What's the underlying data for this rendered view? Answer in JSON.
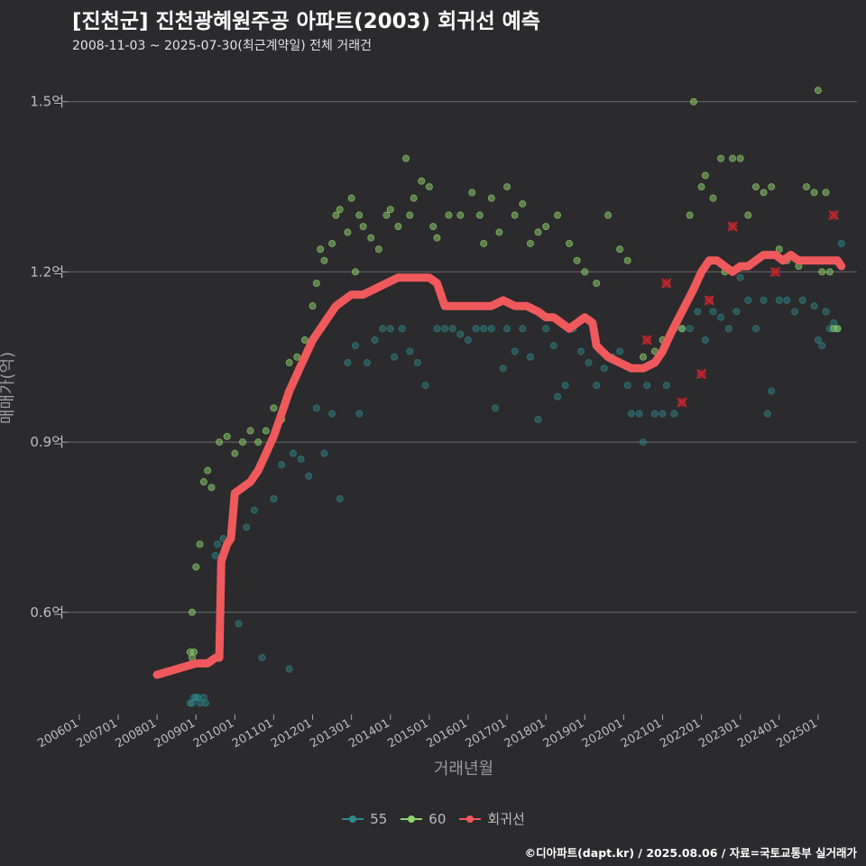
{
  "header": {
    "title": "[진천군] 진천광혜원주공 아파트(2003) 회귀선 예측",
    "subtitle": "2008-11-03 ~ 2025-07-30(최근계약일) 전체 거래건"
  },
  "footer": {
    "credit": "©디아파트(dapt.kr) / 2025.08.06 / 자료=국토교통부 실거래가"
  },
  "colors": {
    "background": "#2b2a2c",
    "s55": "#2e8b8f",
    "s60": "#8ed36b",
    "regression": "#f0595c",
    "grid": "#6a6a6a",
    "outlier": "#c0272d"
  },
  "chart_data": {
    "type": "scatter",
    "title": "[진천군] 진천광혜원주공 아파트(2003) 회귀선 예측",
    "xlabel": "거래년월",
    "ylabel": "매매가(억)",
    "x_range": [
      2005.7,
      2026.0
    ],
    "ylim": [
      0.42,
      1.56
    ],
    "y_ticks": [
      0.6,
      0.9,
      1.2,
      1.5
    ],
    "y_tick_labels": [
      "0.6억",
      "0.9억",
      "1.2억",
      "1.5억"
    ],
    "x_ticks": [
      2006,
      2007,
      2008,
      2009,
      2010,
      2011,
      2012,
      2013,
      2014,
      2015,
      2016,
      2017,
      2018,
      2019,
      2020,
      2021,
      2022,
      2023,
      2024,
      2025
    ],
    "x_tick_labels": [
      "200601",
      "200701",
      "200801",
      "200901",
      "201001",
      "201101",
      "201201",
      "201301",
      "201401",
      "201501",
      "201601",
      "201701",
      "201801",
      "201901",
      "202001",
      "202101",
      "202201",
      "202301",
      "202401",
      "202501"
    ],
    "legend": {
      "placement": "bottom",
      "items": [
        {
          "key": "55",
          "label": "55"
        },
        {
          "key": "60",
          "label": "60"
        },
        {
          "key": "regression",
          "label": "회귀선"
        }
      ]
    },
    "series": [
      {
        "name": "55",
        "points": [
          [
            2008.85,
            0.44
          ],
          [
            2008.9,
            0.44
          ],
          [
            2008.95,
            0.45
          ],
          [
            2009.0,
            0.45
          ],
          [
            2009.05,
            0.45
          ],
          [
            2009.1,
            0.44
          ],
          [
            2009.2,
            0.45
          ],
          [
            2009.25,
            0.44
          ],
          [
            2009.5,
            0.7
          ],
          [
            2009.55,
            0.72
          ],
          [
            2009.7,
            0.73
          ],
          [
            2010.0,
            0.8
          ],
          [
            2010.1,
            0.58
          ],
          [
            2010.3,
            0.75
          ],
          [
            2010.5,
            0.78
          ],
          [
            2010.7,
            0.52
          ],
          [
            2011.0,
            0.8
          ],
          [
            2011.2,
            0.86
          ],
          [
            2011.4,
            0.5
          ],
          [
            2011.5,
            0.88
          ],
          [
            2011.7,
            0.87
          ],
          [
            2011.9,
            0.84
          ],
          [
            2012.1,
            0.96
          ],
          [
            2012.3,
            0.88
          ],
          [
            2012.5,
            0.95
          ],
          [
            2012.7,
            0.8
          ],
          [
            2012.9,
            1.04
          ],
          [
            2013.1,
            1.07
          ],
          [
            2013.2,
            0.95
          ],
          [
            2013.4,
            1.04
          ],
          [
            2013.6,
            1.08
          ],
          [
            2013.8,
            1.1
          ],
          [
            2014.0,
            1.1
          ],
          [
            2014.1,
            1.05
          ],
          [
            2014.3,
            1.1
          ],
          [
            2014.5,
            1.06
          ],
          [
            2014.7,
            1.04
          ],
          [
            2014.9,
            1.0
          ],
          [
            2015.2,
            1.1
          ],
          [
            2015.4,
            1.1
          ],
          [
            2015.6,
            1.1
          ],
          [
            2015.8,
            1.09
          ],
          [
            2016.0,
            1.08
          ],
          [
            2016.2,
            1.1
          ],
          [
            2016.4,
            1.1
          ],
          [
            2016.6,
            1.1
          ],
          [
            2016.7,
            0.96
          ],
          [
            2016.9,
            1.03
          ],
          [
            2017.0,
            1.1
          ],
          [
            2017.2,
            1.06
          ],
          [
            2017.4,
            1.1
          ],
          [
            2017.6,
            1.05
          ],
          [
            2017.8,
            0.94
          ],
          [
            2018.0,
            1.1
          ],
          [
            2018.2,
            1.07
          ],
          [
            2018.3,
            0.98
          ],
          [
            2018.5,
            1.0
          ],
          [
            2018.7,
            1.1
          ],
          [
            2018.9,
            1.06
          ],
          [
            2019.1,
            1.04
          ],
          [
            2019.3,
            1.0
          ],
          [
            2019.5,
            1.03
          ],
          [
            2019.7,
            1.05
          ],
          [
            2019.9,
            1.06
          ],
          [
            2020.1,
            1.0
          ],
          [
            2020.2,
            0.95
          ],
          [
            2020.4,
            0.95
          ],
          [
            2020.5,
            0.9
          ],
          [
            2020.6,
            1.0
          ],
          [
            2020.8,
            0.95
          ],
          [
            2021.0,
            0.95
          ],
          [
            2021.1,
            1.0
          ],
          [
            2021.3,
            0.95
          ],
          [
            2021.5,
            1.1
          ],
          [
            2021.7,
            1.1
          ],
          [
            2021.9,
            1.13
          ],
          [
            2022.1,
            1.08
          ],
          [
            2022.3,
            1.13
          ],
          [
            2022.5,
            1.12
          ],
          [
            2022.7,
            1.1
          ],
          [
            2022.9,
            1.13
          ],
          [
            2023.0,
            1.19
          ],
          [
            2023.2,
            1.15
          ],
          [
            2023.4,
            1.1
          ],
          [
            2023.6,
            1.15
          ],
          [
            2023.7,
            0.95
          ],
          [
            2023.8,
            0.99
          ],
          [
            2024.0,
            1.15
          ],
          [
            2024.2,
            1.15
          ],
          [
            2024.4,
            1.13
          ],
          [
            2024.6,
            1.15
          ],
          [
            2024.9,
            1.14
          ],
          [
            2025.0,
            1.08
          ],
          [
            2025.1,
            1.07
          ],
          [
            2025.2,
            1.13
          ],
          [
            2025.3,
            1.1
          ],
          [
            2025.4,
            1.11
          ],
          [
            2025.5,
            1.1
          ],
          [
            2025.6,
            1.25
          ]
        ]
      },
      {
        "name": "60",
        "points": [
          [
            2008.85,
            0.53
          ],
          [
            2008.9,
            0.52
          ],
          [
            2008.95,
            0.53
          ],
          [
            2008.9,
            0.6
          ],
          [
            2009.0,
            0.68
          ],
          [
            2009.1,
            0.72
          ],
          [
            2009.2,
            0.83
          ],
          [
            2009.3,
            0.85
          ],
          [
            2009.4,
            0.82
          ],
          [
            2009.6,
            0.9
          ],
          [
            2009.8,
            0.91
          ],
          [
            2010.0,
            0.88
          ],
          [
            2010.2,
            0.9
          ],
          [
            2010.4,
            0.92
          ],
          [
            2010.6,
            0.9
          ],
          [
            2010.8,
            0.92
          ],
          [
            2011.0,
            0.96
          ],
          [
            2011.2,
            0.94
          ],
          [
            2011.4,
            1.04
          ],
          [
            2011.6,
            1.05
          ],
          [
            2011.8,
            1.08
          ],
          [
            2012.0,
            1.14
          ],
          [
            2012.1,
            1.18
          ],
          [
            2012.2,
            1.24
          ],
          [
            2012.3,
            1.22
          ],
          [
            2012.5,
            1.25
          ],
          [
            2012.6,
            1.3
          ],
          [
            2012.7,
            1.31
          ],
          [
            2012.9,
            1.27
          ],
          [
            2013.0,
            1.33
          ],
          [
            2013.1,
            1.2
          ],
          [
            2013.2,
            1.3
          ],
          [
            2013.3,
            1.28
          ],
          [
            2013.5,
            1.26
          ],
          [
            2013.7,
            1.24
          ],
          [
            2013.9,
            1.3
          ],
          [
            2014.0,
            1.31
          ],
          [
            2014.2,
            1.28
          ],
          [
            2014.4,
            1.4
          ],
          [
            2014.5,
            1.3
          ],
          [
            2014.6,
            1.33
          ],
          [
            2014.8,
            1.36
          ],
          [
            2015.0,
            1.35
          ],
          [
            2015.1,
            1.28
          ],
          [
            2015.2,
            1.26
          ],
          [
            2015.5,
            1.3
          ],
          [
            2015.8,
            1.3
          ],
          [
            2016.1,
            1.34
          ],
          [
            2016.3,
            1.3
          ],
          [
            2016.4,
            1.25
          ],
          [
            2016.6,
            1.33
          ],
          [
            2016.8,
            1.27
          ],
          [
            2017.0,
            1.35
          ],
          [
            2017.2,
            1.3
          ],
          [
            2017.4,
            1.32
          ],
          [
            2017.6,
            1.25
          ],
          [
            2017.8,
            1.27
          ],
          [
            2018.0,
            1.28
          ],
          [
            2018.3,
            1.3
          ],
          [
            2018.6,
            1.25
          ],
          [
            2018.8,
            1.22
          ],
          [
            2019.0,
            1.2
          ],
          [
            2019.3,
            1.18
          ],
          [
            2019.6,
            1.3
          ],
          [
            2019.9,
            1.24
          ],
          [
            2020.1,
            1.22
          ],
          [
            2020.5,
            1.05
          ],
          [
            2020.8,
            1.06
          ],
          [
            2021.0,
            1.08
          ],
          [
            2021.3,
            1.1
          ],
          [
            2021.5,
            1.1
          ],
          [
            2021.7,
            1.3
          ],
          [
            2021.8,
            1.5
          ],
          [
            2022.0,
            1.35
          ],
          [
            2022.1,
            1.37
          ],
          [
            2022.3,
            1.33
          ],
          [
            2022.5,
            1.4
          ],
          [
            2022.6,
            1.2
          ],
          [
            2022.8,
            1.4
          ],
          [
            2023.0,
            1.4
          ],
          [
            2023.2,
            1.3
          ],
          [
            2023.4,
            1.35
          ],
          [
            2023.6,
            1.34
          ],
          [
            2023.8,
            1.35
          ],
          [
            2024.0,
            1.24
          ],
          [
            2024.2,
            1.22
          ],
          [
            2024.5,
            1.21
          ],
          [
            2024.7,
            1.35
          ],
          [
            2024.9,
            1.34
          ],
          [
            2025.0,
            1.52
          ],
          [
            2025.1,
            1.2
          ],
          [
            2025.2,
            1.34
          ],
          [
            2025.3,
            1.2
          ],
          [
            2025.4,
            1.1
          ],
          [
            2025.5,
            1.1
          ]
        ]
      }
    ],
    "regression_line": [
      [
        2008.0,
        0.49
      ],
      [
        2008.5,
        0.5
      ],
      [
        2009.0,
        0.51
      ],
      [
        2009.3,
        0.51
      ],
      [
        2009.5,
        0.52
      ],
      [
        2009.6,
        0.52
      ],
      [
        2009.65,
        0.69
      ],
      [
        2009.8,
        0.72
      ],
      [
        2009.9,
        0.73
      ],
      [
        2010.0,
        0.81
      ],
      [
        2010.2,
        0.82
      ],
      [
        2010.4,
        0.83
      ],
      [
        2010.6,
        0.85
      ],
      [
        2010.8,
        0.88
      ],
      [
        2011.0,
        0.91
      ],
      [
        2011.2,
        0.95
      ],
      [
        2011.4,
        0.99
      ],
      [
        2011.6,
        1.02
      ],
      [
        2011.8,
        1.05
      ],
      [
        2012.0,
        1.08
      ],
      [
        2012.2,
        1.1
      ],
      [
        2012.4,
        1.12
      ],
      [
        2012.6,
        1.14
      ],
      [
        2012.8,
        1.15
      ],
      [
        2013.0,
        1.16
      ],
      [
        2013.3,
        1.16
      ],
      [
        2013.6,
        1.17
      ],
      [
        2013.9,
        1.18
      ],
      [
        2014.2,
        1.19
      ],
      [
        2014.5,
        1.19
      ],
      [
        2014.8,
        1.19
      ],
      [
        2015.0,
        1.19
      ],
      [
        2015.2,
        1.18
      ],
      [
        2015.4,
        1.14
      ],
      [
        2015.6,
        1.14
      ],
      [
        2016.0,
        1.14
      ],
      [
        2016.3,
        1.14
      ],
      [
        2016.6,
        1.14
      ],
      [
        2016.9,
        1.15
      ],
      [
        2017.2,
        1.14
      ],
      [
        2017.5,
        1.14
      ],
      [
        2017.8,
        1.13
      ],
      [
        2018.0,
        1.12
      ],
      [
        2018.2,
        1.12
      ],
      [
        2018.4,
        1.11
      ],
      [
        2018.6,
        1.1
      ],
      [
        2018.8,
        1.11
      ],
      [
        2019.0,
        1.12
      ],
      [
        2019.2,
        1.11
      ],
      [
        2019.3,
        1.07
      ],
      [
        2019.6,
        1.05
      ],
      [
        2019.9,
        1.04
      ],
      [
        2020.2,
        1.03
      ],
      [
        2020.5,
        1.03
      ],
      [
        2020.8,
        1.04
      ],
      [
        2021.0,
        1.06
      ],
      [
        2021.2,
        1.09
      ],
      [
        2021.5,
        1.13
      ],
      [
        2021.8,
        1.17
      ],
      [
        2022.0,
        1.2
      ],
      [
        2022.2,
        1.22
      ],
      [
        2022.4,
        1.22
      ],
      [
        2022.6,
        1.21
      ],
      [
        2022.8,
        1.2
      ],
      [
        2023.0,
        1.21
      ],
      [
        2023.2,
        1.21
      ],
      [
        2023.4,
        1.22
      ],
      [
        2023.6,
        1.23
      ],
      [
        2023.9,
        1.23
      ],
      [
        2024.1,
        1.22
      ],
      [
        2024.3,
        1.23
      ],
      [
        2024.5,
        1.22
      ],
      [
        2024.7,
        1.22
      ],
      [
        2025.0,
        1.22
      ],
      [
        2025.3,
        1.22
      ],
      [
        2025.5,
        1.22
      ],
      [
        2025.6,
        1.21
      ]
    ],
    "outliers": [
      [
        2020.6,
        1.08
      ],
      [
        2021.1,
        1.18
      ],
      [
        2021.5,
        0.97
      ],
      [
        2022.0,
        1.02
      ],
      [
        2022.2,
        1.15
      ],
      [
        2022.8,
        1.28
      ],
      [
        2023.9,
        1.2
      ],
      [
        2025.4,
        1.3
      ]
    ]
  }
}
